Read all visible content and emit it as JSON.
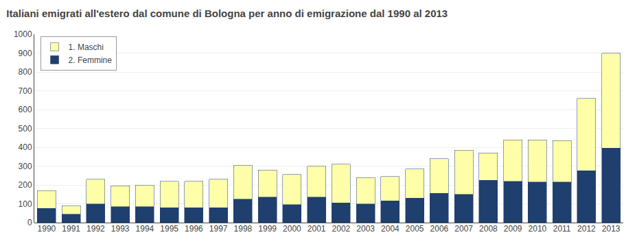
{
  "chart_data": {
    "type": "bar",
    "stacked": true,
    "title": "Italiani emigrati all'estero dal comune di Bologna per anno di emigrazione dal 1990 al 2013",
    "categories": [
      "1990",
      "1991",
      "1992",
      "1993",
      "1994",
      "1995",
      "1996",
      "1997",
      "1998",
      "1999",
      "2000",
      "2001",
      "2002",
      "2003",
      "2004",
      "2005",
      "2006",
      "2007",
      "2008",
      "2009",
      "2010",
      "2011",
      "2012",
      "2013"
    ],
    "series": [
      {
        "name": "2. Femmine",
        "color": "#1f3f6e",
        "values": [
          75,
          45,
          100,
          85,
          85,
          80,
          80,
          80,
          125,
          135,
          95,
          135,
          105,
          100,
          115,
          130,
          155,
          150,
          225,
          220,
          215,
          215,
          275,
          395
        ]
      },
      {
        "name": "1. Maschi",
        "color": "#ffffaa",
        "values": [
          95,
          45,
          130,
          110,
          115,
          140,
          140,
          150,
          180,
          145,
          160,
          165,
          205,
          140,
          130,
          155,
          185,
          235,
          145,
          220,
          225,
          220,
          385,
          505
        ]
      }
    ],
    "ylim": [
      0,
      1000
    ],
    "yticks": [
      0,
      100,
      200,
      300,
      400,
      500,
      600,
      700,
      800,
      900,
      1000
    ],
    "grid": true,
    "legend": "upper left"
  }
}
